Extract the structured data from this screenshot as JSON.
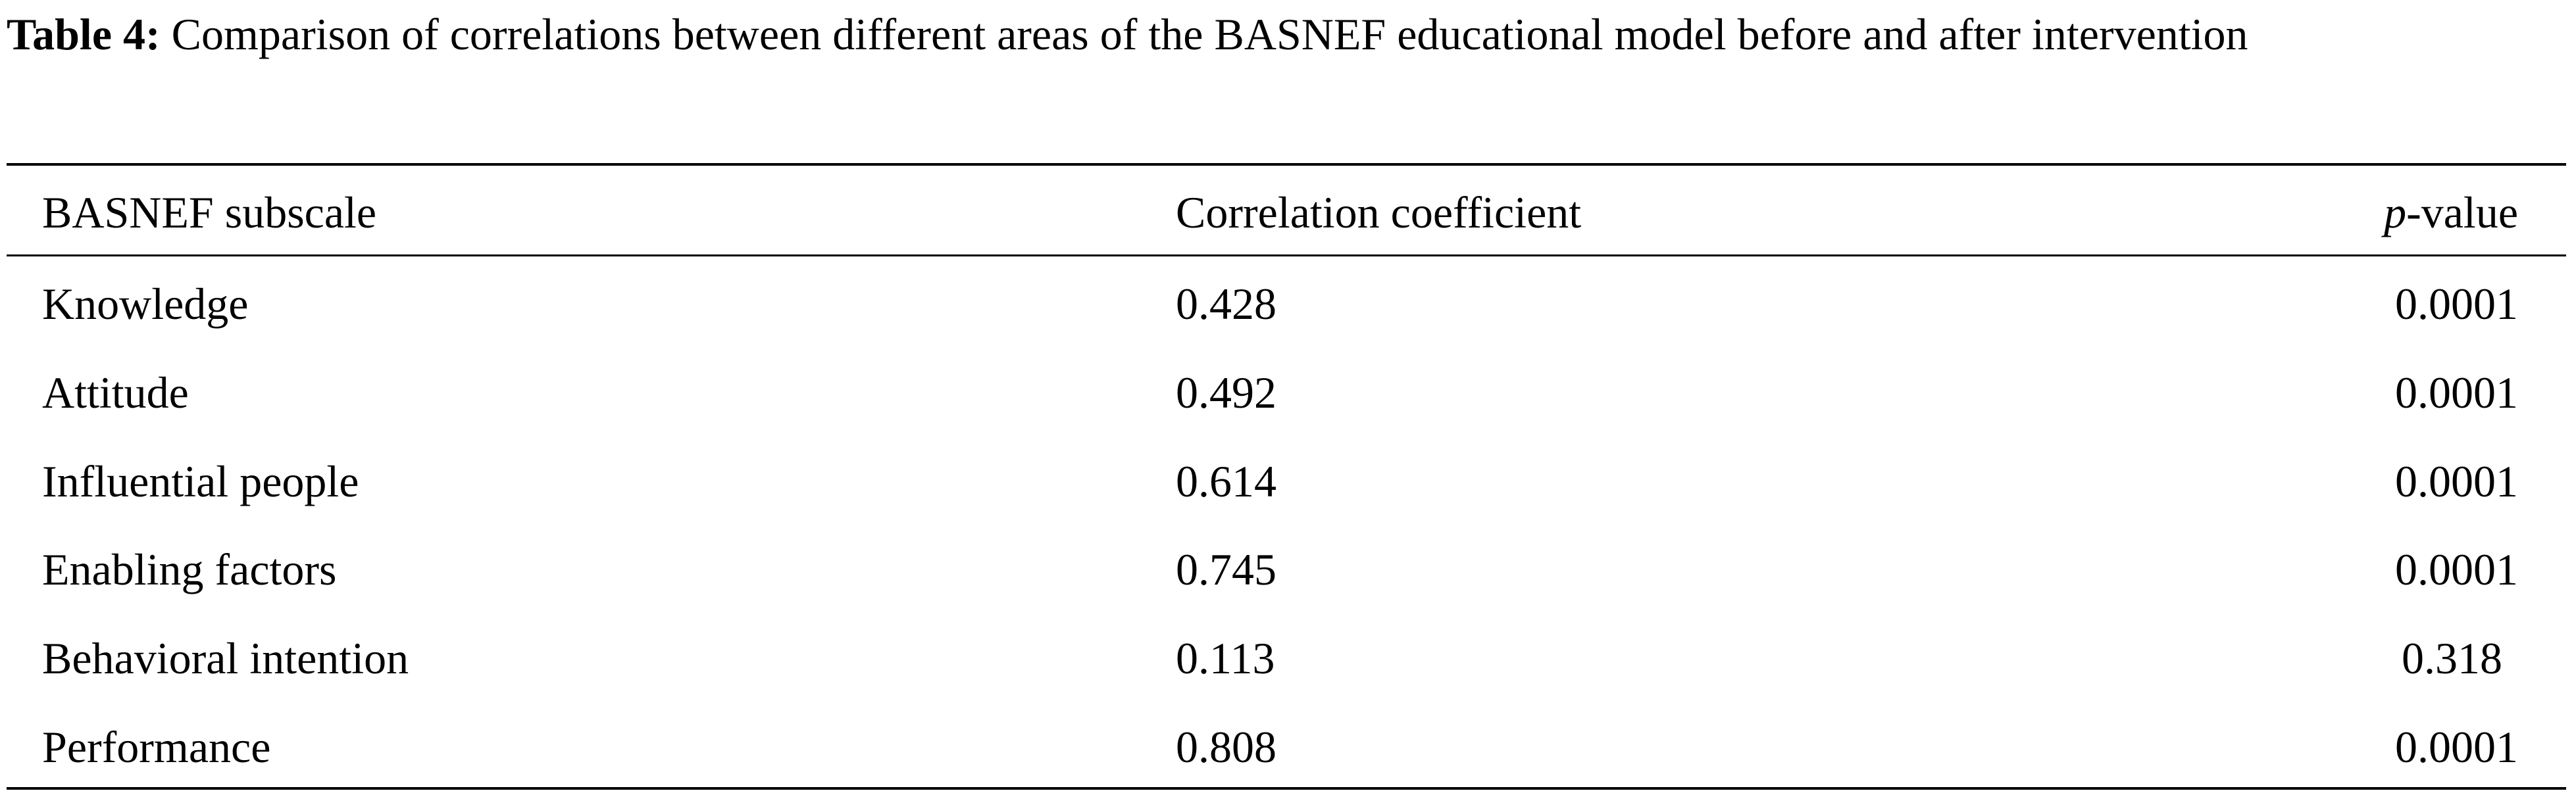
{
  "caption": {
    "label": "Table 4:",
    "text": "Comparison of correlations between different areas of the BASNEF educational model before and after intervention"
  },
  "table": {
    "headers": {
      "subscale": "BASNEF subscale",
      "correlation": "Correlation coefficient",
      "p_italic": "p",
      "p_rest": "-value"
    },
    "rows": [
      {
        "subscale": "Knowledge",
        "correlation": "0.428",
        "p_value": "0.0001"
      },
      {
        "subscale": "Attitude",
        "correlation": "0.492",
        "p_value": "0.0001"
      },
      {
        "subscale": "Influential people",
        "correlation": "0.614",
        "p_value": "0.0001"
      },
      {
        "subscale": "Enabling factors",
        "correlation": "0.745",
        "p_value": "0.0001"
      },
      {
        "subscale": "Behavioral intention",
        "correlation": "0.113",
        "p_value": "0.318"
      },
      {
        "subscale": "Performance",
        "correlation": "0.808",
        "p_value": "0.0001"
      }
    ]
  }
}
